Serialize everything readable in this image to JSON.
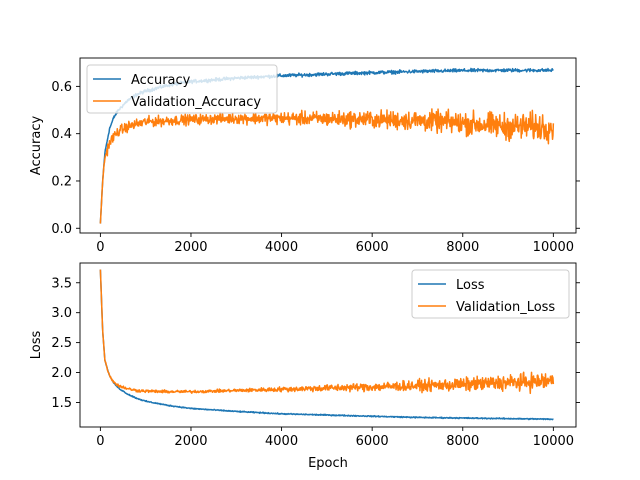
{
  "chart_data": [
    {
      "type": "line",
      "xlabel": "",
      "ylabel": "Accuracy",
      "xlim": [
        -450,
        10500
      ],
      "ylim": [
        -0.02,
        0.72
      ],
      "x_ticks": [
        0,
        2000,
        4000,
        6000,
        8000,
        10000
      ],
      "x_tick_labels": [
        "0",
        "2000",
        "4000",
        "6000",
        "8000",
        "10000"
      ],
      "y_ticks": [
        0.0,
        0.2,
        0.4,
        0.6
      ],
      "y_tick_labels": [
        "0.0",
        "0.2",
        "0.4",
        "0.6"
      ],
      "legend_position": "upper-left",
      "series": [
        {
          "name": "Accuracy",
          "color": "#1f77b4",
          "noise": 0.006,
          "x": [
            0,
            50,
            100,
            200,
            300,
            400,
            600,
            800,
            1000,
            1500,
            2000,
            3000,
            4000,
            5000,
            6000,
            7000,
            8000,
            9000,
            10000
          ],
          "y": [
            0.02,
            0.2,
            0.32,
            0.42,
            0.47,
            0.5,
            0.54,
            0.565,
            0.58,
            0.605,
            0.62,
            0.635,
            0.645,
            0.652,
            0.658,
            0.663,
            0.667,
            0.668,
            0.668
          ]
        },
        {
          "name": "Validation_Accuracy",
          "color": "#ff7f0e",
          "noise": 0.018,
          "noise_growth": 0.035,
          "x": [
            0,
            50,
            100,
            200,
            300,
            400,
            600,
            800,
            1000,
            1500,
            2000,
            3000,
            4000,
            5000,
            6000,
            7000,
            8000,
            9000,
            10000
          ],
          "y": [
            0.02,
            0.2,
            0.3,
            0.36,
            0.39,
            0.41,
            0.43,
            0.44,
            0.45,
            0.455,
            0.46,
            0.465,
            0.465,
            0.463,
            0.46,
            0.455,
            0.445,
            0.43,
            0.43
          ]
        }
      ]
    },
    {
      "type": "line",
      "xlabel": "Epoch",
      "ylabel": "Loss",
      "xlim": [
        -450,
        10500
      ],
      "ylim": [
        1.09,
        3.83
      ],
      "x_ticks": [
        0,
        2000,
        4000,
        6000,
        8000,
        10000
      ],
      "x_tick_labels": [
        "0",
        "2000",
        "4000",
        "6000",
        "8000",
        "10000"
      ],
      "y_ticks": [
        1.5,
        2.0,
        2.5,
        3.0,
        3.5
      ],
      "y_tick_labels": [
        "1.5",
        "2.0",
        "2.5",
        "3.0",
        "3.5"
      ],
      "legend_position": "upper-right",
      "series": [
        {
          "name": "Loss",
          "color": "#1f77b4",
          "noise": 0.008,
          "x": [
            0,
            50,
            100,
            200,
            300,
            400,
            600,
            800,
            1000,
            1500,
            2000,
            3000,
            4000,
            5000,
            6000,
            7000,
            8000,
            9000,
            10000
          ],
          "y": [
            3.72,
            2.7,
            2.2,
            1.95,
            1.82,
            1.74,
            1.64,
            1.57,
            1.52,
            1.45,
            1.4,
            1.35,
            1.31,
            1.29,
            1.27,
            1.25,
            1.24,
            1.23,
            1.22
          ]
        },
        {
          "name": "Validation_Loss",
          "color": "#ff7f0e",
          "noise": 0.02,
          "noise_growth": 0.11,
          "x": [
            0,
            50,
            100,
            200,
            300,
            400,
            600,
            800,
            1000,
            1500,
            2000,
            3000,
            4000,
            5000,
            6000,
            7000,
            8000,
            9000,
            10000
          ],
          "y": [
            3.72,
            2.7,
            2.2,
            1.95,
            1.84,
            1.78,
            1.73,
            1.7,
            1.69,
            1.68,
            1.68,
            1.7,
            1.72,
            1.74,
            1.76,
            1.78,
            1.8,
            1.83,
            1.86
          ]
        }
      ]
    }
  ]
}
